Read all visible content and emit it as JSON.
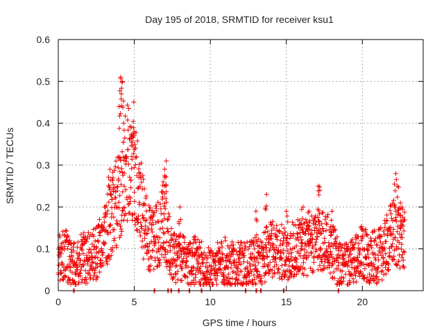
{
  "chart_data": {
    "type": "scatter",
    "title": "Day 195 of 2018, SRMTID for receiver ksu1",
    "xlabel": "GPS time / hours",
    "ylabel": "SRMTID / TECUs",
    "xlim": [
      0,
      24
    ],
    "ylim": [
      0,
      0.6
    ],
    "xticks": [
      0,
      5,
      10,
      15,
      20
    ],
    "yticks": [
      0,
      0.1,
      0.2,
      0.3,
      0.4,
      0.5,
      0.6
    ],
    "xtick_labels": [
      "0",
      "5",
      "10",
      "15",
      "20"
    ],
    "ytick_labels": [
      "0",
      "0.1",
      "0.2",
      "0.3",
      "0.4",
      "0.5",
      "0.6"
    ],
    "grid": true,
    "marker": "+",
    "color": "#ee0000",
    "series": [
      {
        "name": "SRMTID",
        "trend": [
          [
            0.0,
            0.08
          ],
          [
            0.5,
            0.09
          ],
          [
            1.0,
            0.06
          ],
          [
            1.5,
            0.08
          ],
          [
            2.0,
            0.08
          ],
          [
            2.5,
            0.09
          ],
          [
            3.0,
            0.12
          ],
          [
            3.3,
            0.16
          ],
          [
            3.6,
            0.19
          ],
          [
            4.0,
            0.22
          ],
          [
            4.3,
            0.29
          ],
          [
            4.6,
            0.31
          ],
          [
            5.0,
            0.31
          ],
          [
            5.3,
            0.24
          ],
          [
            5.6,
            0.17
          ],
          [
            6.0,
            0.12
          ],
          [
            6.5,
            0.13
          ],
          [
            7.0,
            0.17
          ],
          [
            7.3,
            0.11
          ],
          [
            7.6,
            0.08
          ],
          [
            8.0,
            0.08
          ],
          [
            8.5,
            0.06
          ],
          [
            9.0,
            0.07
          ],
          [
            9.5,
            0.06
          ],
          [
            10.0,
            0.05
          ],
          [
            10.5,
            0.06
          ],
          [
            11.0,
            0.07
          ],
          [
            11.5,
            0.06
          ],
          [
            12.0,
            0.06
          ],
          [
            12.5,
            0.06
          ],
          [
            13.0,
            0.07
          ],
          [
            13.5,
            0.08
          ],
          [
            14.0,
            0.1
          ],
          [
            14.5,
            0.1
          ],
          [
            15.0,
            0.08
          ],
          [
            15.5,
            0.1
          ],
          [
            16.0,
            0.11
          ],
          [
            16.5,
            0.1
          ],
          [
            17.0,
            0.12
          ],
          [
            17.5,
            0.12
          ],
          [
            18.0,
            0.1
          ],
          [
            18.5,
            0.06
          ],
          [
            19.0,
            0.06
          ],
          [
            19.5,
            0.07
          ],
          [
            20.0,
            0.09
          ],
          [
            20.5,
            0.08
          ],
          [
            21.0,
            0.08
          ],
          [
            21.5,
            0.1
          ],
          [
            22.0,
            0.14
          ],
          [
            22.5,
            0.13
          ],
          [
            22.8,
            0.12
          ]
        ],
        "peaks": [
          [
            4.1,
            0.51
          ],
          [
            4.15,
            0.47
          ],
          [
            4.2,
            0.5
          ],
          [
            4.0,
            0.44
          ],
          [
            4.3,
            0.4
          ],
          [
            4.8,
            0.39
          ],
          [
            5.0,
            0.38
          ],
          [
            3.4,
            0.29
          ],
          [
            3.6,
            0.27
          ],
          [
            7.1,
            0.31
          ],
          [
            7.0,
            0.29
          ],
          [
            6.9,
            0.26
          ],
          [
            8.0,
            0.2
          ],
          [
            13.0,
            0.19
          ],
          [
            13.7,
            0.23
          ],
          [
            15.0,
            0.19
          ],
          [
            16.1,
            0.2
          ],
          [
            16.5,
            0.19
          ],
          [
            17.1,
            0.25
          ],
          [
            17.2,
            0.24
          ],
          [
            18.0,
            0.19
          ],
          [
            22.2,
            0.28
          ],
          [
            22.3,
            0.25
          ],
          [
            22.6,
            0.2
          ]
        ],
        "zero_values": [
          1.0,
          6.3,
          7.2,
          7.4,
          7.9,
          8.6,
          9.4,
          12.3,
          13.0,
          13.3,
          14.8,
          18.4
        ]
      }
    ]
  }
}
